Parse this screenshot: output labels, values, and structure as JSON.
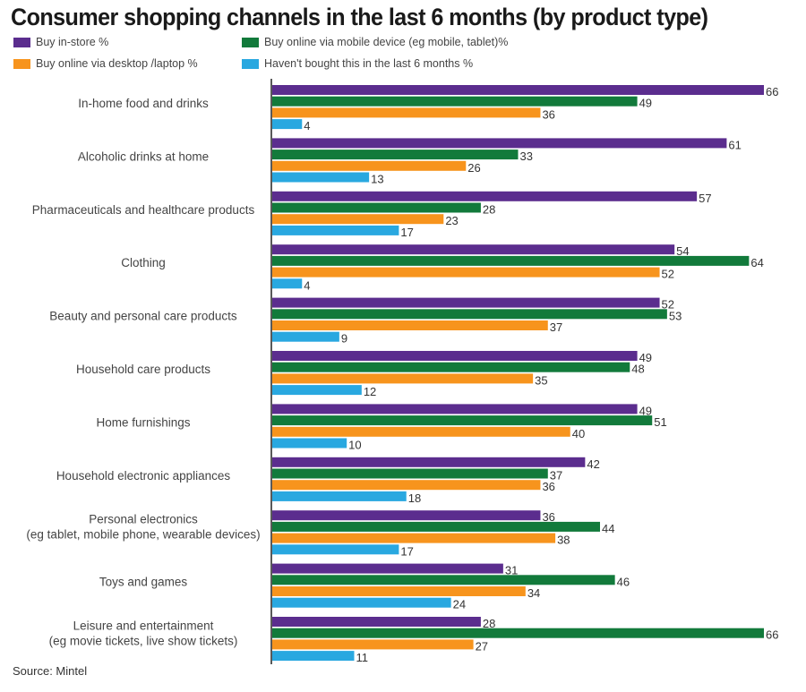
{
  "chart_data": {
    "type": "bar",
    "orientation": "horizontal",
    "title": "Consumer shopping channels in the last 6 months (by product type)",
    "categories": [
      "In-home food and drinks",
      "Alcoholic drinks at home",
      "Pharmaceuticals and healthcare products",
      "Clothing",
      "Beauty and personal care products",
      "Household care products",
      "Home furnishings",
      "Household electronic appliances",
      "Personal electronics\n(eg tablet, mobile phone, wearable devices)",
      "Toys and games",
      "Leisure and entertainment\n(eg movie tickets, live show tickets)"
    ],
    "series": [
      {
        "name": "Buy in-store %",
        "color": "#5b2d8e",
        "values": [
          66,
          61,
          57,
          54,
          52,
          49,
          49,
          42,
          36,
          31,
          28
        ]
      },
      {
        "name": "Buy online via mobile device (eg mobile, tablet)%",
        "color": "#127a3b",
        "values": [
          49,
          33,
          28,
          64,
          53,
          48,
          51,
          37,
          44,
          46,
          66
        ]
      },
      {
        "name": "Buy online via desktop /laptop %",
        "color": "#f7941d",
        "values": [
          36,
          26,
          23,
          52,
          37,
          35,
          40,
          36,
          38,
          34,
          27
        ]
      },
      {
        "name": "Haven't bought this in the last 6 months %",
        "color": "#29a8e0",
        "values": [
          4,
          13,
          17,
          4,
          9,
          12,
          10,
          18,
          17,
          24,
          11
        ]
      }
    ],
    "xlim": [
      0,
      66
    ],
    "grid": false,
    "data_labels": true,
    "legend_placement": "top-left",
    "source": "Source: Mintel"
  }
}
